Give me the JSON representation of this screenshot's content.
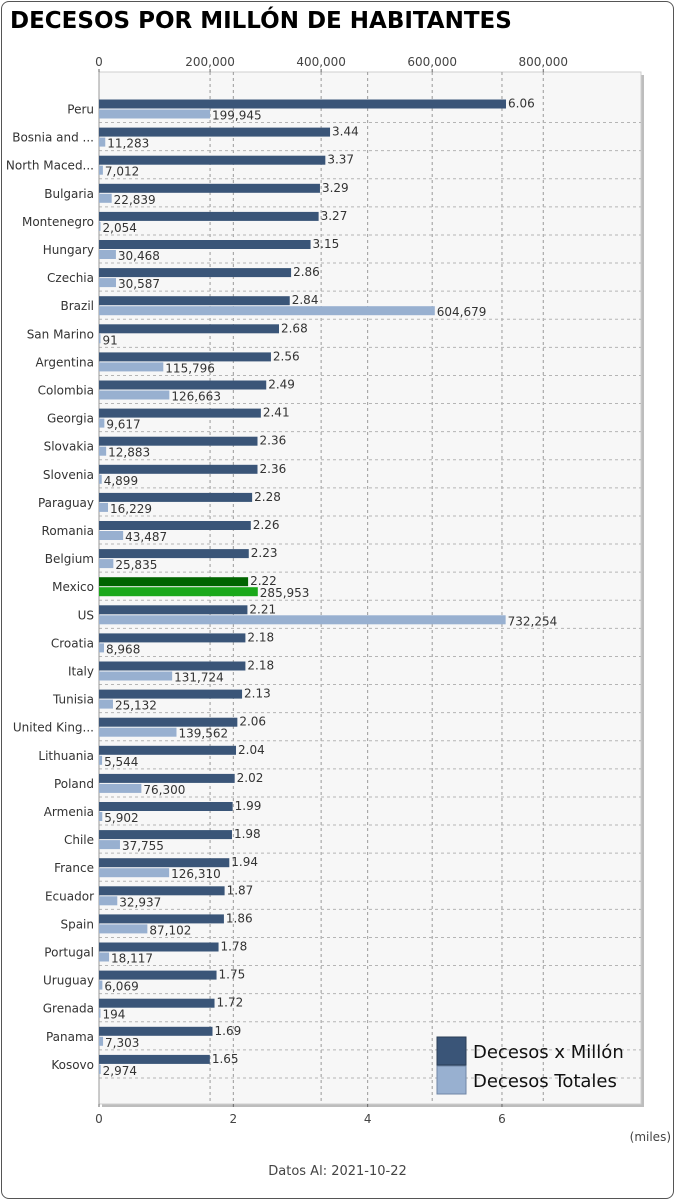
{
  "chart_data": {
    "type": "bar",
    "orientation": "horizontal",
    "title": "DECESOS POR MILLÓN DE HABITANTES",
    "categories": [
      "Peru",
      "Bosnia and ...",
      "North Maced...",
      "Bulgaria",
      "Montenegro",
      "Hungary",
      "Czechia",
      "Brazil",
      "San Marino",
      "Argentina",
      "Colombia",
      "Georgia",
      "Slovakia",
      "Slovenia",
      "Paraguay",
      "Romania",
      "Belgium",
      "Mexico",
      "US",
      "Croatia",
      "Italy",
      "Tunisia",
      "United King...",
      "Lithuania",
      "Poland",
      "Armenia",
      "Chile",
      "France",
      "Ecuador",
      "Spain",
      "Portugal",
      "Uruguay",
      "Grenada",
      "Panama",
      "Kosovo"
    ],
    "series": [
      {
        "name": "Decesos x Millón",
        "axis": "bottom",
        "color": "#3a5578",
        "values": [
          6.06,
          3.44,
          3.37,
          3.29,
          3.27,
          3.15,
          2.86,
          2.84,
          2.68,
          2.56,
          2.49,
          2.41,
          2.36,
          2.36,
          2.28,
          2.26,
          2.23,
          2.22,
          2.21,
          2.18,
          2.18,
          2.13,
          2.06,
          2.04,
          2.02,
          1.99,
          1.98,
          1.94,
          1.87,
          1.86,
          1.78,
          1.75,
          1.72,
          1.69,
          1.65
        ],
        "labels": [
          "6.06",
          "3.44",
          "3.37",
          "3.29",
          "3.27",
          "3.15",
          "2.86",
          "2.84",
          "2.68",
          "2.56",
          "2.49",
          "2.41",
          "2.36",
          "2.36",
          "2.28",
          "2.26",
          "2.23",
          "2.22",
          "2.21",
          "2.18",
          "2.18",
          "2.13",
          "2.06",
          "2.04",
          "2.02",
          "1.99",
          "1.98",
          "1.94",
          "1.87",
          "1.86",
          "1.78",
          "1.75",
          "1.72",
          "1.69",
          "1.65"
        ]
      },
      {
        "name": "Decesos Totales",
        "axis": "top",
        "color": "#98b0d0",
        "values": [
          199945,
          11283,
          7012,
          22839,
          2054,
          30468,
          30587,
          604679,
          91,
          115796,
          126663,
          9617,
          12883,
          4899,
          16229,
          43487,
          25835,
          285953,
          732254,
          8968,
          131724,
          25132,
          139562,
          5544,
          76300,
          5902,
          37755,
          126310,
          32937,
          87102,
          18117,
          6069,
          194,
          7303,
          2974
        ],
        "labels": [
          "199,945",
          "11,283",
          "7,012",
          "22,839",
          "2,054",
          "30,468",
          "30,587",
          "604,679",
          "91",
          "115,796",
          "126,663",
          "9,617",
          "12,883",
          "4,899",
          "16,229",
          "43,487",
          "25,835",
          "285,953",
          "732,254",
          "8,968",
          "131,724",
          "25,132",
          "139,562",
          "5,544",
          "76,300",
          "5,902",
          "37,755",
          "126,310",
          "32,937",
          "87,102",
          "18,117",
          "6,069",
          "194",
          "7,303",
          "2,974"
        ]
      }
    ],
    "highlight": {
      "category": "Mexico",
      "colors": [
        "#006400",
        "#1aa81a"
      ]
    },
    "x_top": {
      "range": [
        0,
        976000
      ],
      "ticks": [
        0,
        200000,
        400000,
        600000,
        800000
      ],
      "tick_labels": [
        "0",
        "200,000",
        "400,000",
        "600,000",
        "800,000"
      ]
    },
    "x_bottom": {
      "range": [
        0,
        8.07
      ],
      "ticks": [
        0,
        2,
        4,
        6
      ],
      "tick_labels": [
        "0",
        "2",
        "4",
        "6"
      ],
      "unit": "(miles)"
    },
    "grid": true,
    "legend": {
      "position": "bottom-right",
      "entries": [
        "Decesos x Millón",
        "Decesos Totales"
      ]
    }
  },
  "footer": {
    "text": "Datos Al: 2021-10-22"
  }
}
